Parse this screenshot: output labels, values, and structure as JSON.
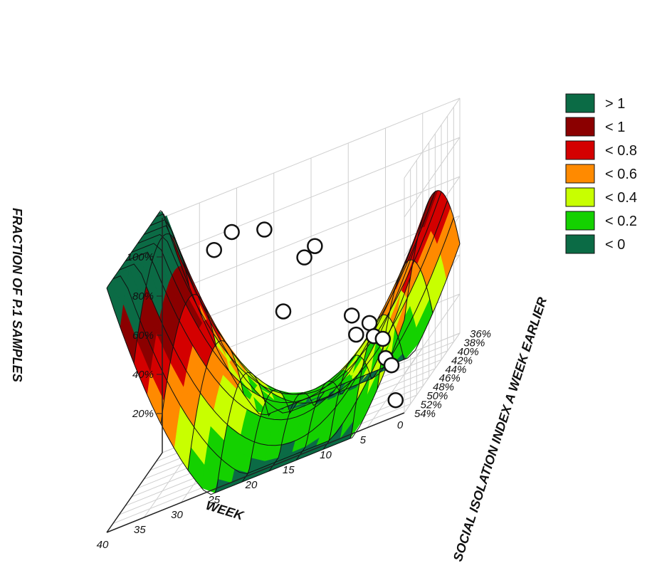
{
  "chart_data": {
    "type": "surface3d",
    "xlabel": "WEEK",
    "ylabel": "SOCIAL ISOLATION INDEX A WEEK EARLIER",
    "zlabel": "FRACTION OF P.1 SAMPLES",
    "x_ticks": [
      "0",
      "5",
      "10",
      "15",
      "20",
      "25",
      "30",
      "35",
      "40"
    ],
    "y_ticks": [
      "36%",
      "38%",
      "40%",
      "42%",
      "44%",
      "46%",
      "48%",
      "50%",
      "52%",
      "54%"
    ],
    "z_ticks": [
      "20%",
      "40%",
      "60%",
      "80%",
      "100%"
    ],
    "xlim": [
      0,
      40
    ],
    "ylim": [
      36,
      54
    ],
    "zlim": [
      0,
      1.2
    ],
    "legend": {
      "position": "right",
      "entries": [
        {
          "label": "> 1",
          "color": "#0b6b45"
        },
        {
          "label": "< 1",
          "color": "#8b0000"
        },
        {
          "label": "< 0.8",
          "color": "#d40000"
        },
        {
          "label": "< 0.6",
          "color": "#ff8a00"
        },
        {
          "label": "< 0.4",
          "color": "#c8ff00"
        },
        {
          "label": "< 0.2",
          "color": "#14d100"
        },
        {
          "label": "< 0",
          "color": "#0b6b45"
        }
      ]
    },
    "points": [
      {
        "week": 32,
        "sii": 38.5,
        "fraction": 0.97
      },
      {
        "week": 29,
        "sii": 40.0,
        "fraction": 1.05
      },
      {
        "week": 24,
        "sii": 41.5,
        "fraction": 1.02
      },
      {
        "week": 18,
        "sii": 43.0,
        "fraction": 0.82
      },
      {
        "week": 17,
        "sii": 42.0,
        "fraction": 0.84
      },
      {
        "week": 20,
        "sii": 45.0,
        "fraction": 0.62
      },
      {
        "week": 11,
        "sii": 44.5,
        "fraction": 0.45
      },
      {
        "week": 10,
        "sii": 45.5,
        "fraction": 0.36
      },
      {
        "week": 8,
        "sii": 46.0,
        "fraction": 0.4
      },
      {
        "week": 7,
        "sii": 47.0,
        "fraction": 0.34
      },
      {
        "week": 6,
        "sii": 46.5,
        "fraction": 0.3
      },
      {
        "week": 5,
        "sii": 48.0,
        "fraction": 0.22
      },
      {
        "week": 4,
        "sii": 48.5,
        "fraction": 0.18
      },
      {
        "week": 2,
        "sii": 52.0,
        "fraction": 0.05
      }
    ]
  }
}
